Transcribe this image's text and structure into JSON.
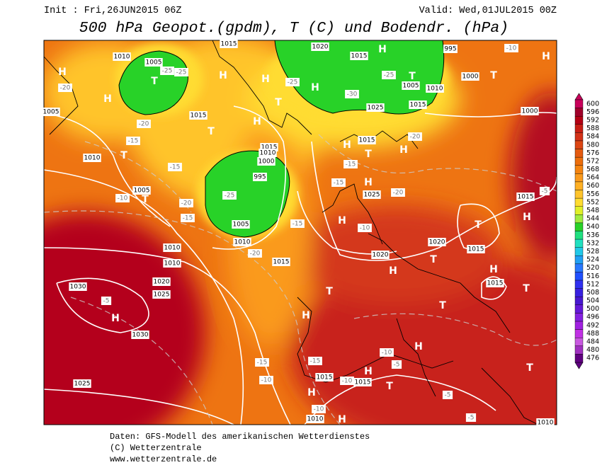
{
  "header": {
    "init": "Init : Fri,26JUN2015 06Z",
    "valid": "Valid: Wed,01JUL2015 00Z",
    "title": "500 hPa Geopot.(gpdm), T (C) und Bodendr. (hPa)"
  },
  "footer": {
    "line1": "Daten: GFS-Modell des amerikanischen Wetterdienstes",
    "line2": "(C) Wetterzentrale",
    "line3": "www.wetterzentrale.de"
  },
  "legend": {
    "labels": [
      600,
      596,
      592,
      588,
      584,
      580,
      576,
      572,
      568,
      564,
      560,
      556,
      552,
      548,
      544,
      540,
      536,
      532,
      528,
      524,
      520,
      516,
      512,
      508,
      504,
      500,
      496,
      492,
      488,
      484,
      480,
      476
    ],
    "colors": [
      "#c8005a",
      "#a0002a",
      "#b40014",
      "#c81e14",
      "#d43218",
      "#dc4614",
      "#e45a10",
      "#ec6e0c",
      "#f48410",
      "#fa9a1c",
      "#ffb024",
      "#ffc42c",
      "#ffdc30",
      "#e0f028",
      "#a0ec40",
      "#28d228",
      "#20e080",
      "#20e0c0",
      "#20c8e8",
      "#20a0f4",
      "#2878ff",
      "#2050ff",
      "#3030f0",
      "#3820e0",
      "#4818d0",
      "#6418d8",
      "#8420e0",
      "#a020e0",
      "#c030e4",
      "#c858e0",
      "#a030c0",
      "#600080"
    ]
  },
  "map": {
    "pressure_labels": [
      "1010",
      "1005",
      "1015",
      "1020",
      "1015",
      "995",
      "1000",
      "1010",
      "1005",
      "1015",
      "1005",
      "1010",
      "1000",
      "1015",
      "1010",
      "995",
      "1005",
      "1010",
      "1015",
      "1025",
      "1025",
      "1020",
      "1010",
      "1010",
      "1015",
      "1030",
      "1030",
      "1025",
      "1020",
      "1015",
      "1020",
      "1015",
      "1015",
      "1015",
      "1025",
      "1015",
      "1010",
      "1010",
      "1015",
      "1005",
      "1010",
      "1000"
    ],
    "temperature_labels": [
      "-25",
      "-20",
      "-20",
      "-25",
      "-25",
      "-30",
      "-25",
      "-20",
      "-20",
      "-15",
      "-15",
      "-10",
      "-15",
      "-15",
      "-25",
      "-20",
      "-15",
      "-10",
      "-20",
      "-15",
      "-15",
      "-10",
      "-5",
      "-15",
      "-10",
      "-5",
      "-10",
      "-5",
      "-5",
      "-10",
      "-5",
      "-10"
    ],
    "centers": [
      "H",
      "H",
      "H",
      "H",
      "H",
      "H",
      "H",
      "H",
      "H",
      "H",
      "H",
      "H",
      "H",
      "H",
      "H",
      "H",
      "H",
      "H",
      "H",
      "H",
      "H",
      "T",
      "T",
      "T",
      "T",
      "T",
      "T",
      "T",
      "T",
      "T",
      "T",
      "T",
      "T",
      "T",
      "T",
      "T"
    ]
  }
}
